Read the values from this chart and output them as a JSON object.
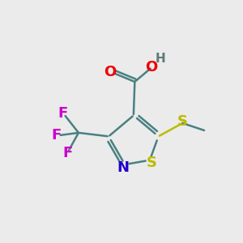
{
  "bg_color": "#ebebeb",
  "ring_color": "#4a8080",
  "N_color": "#2200cc",
  "S_ring_color": "#bbbb00",
  "S_methyl_color": "#bbbb00",
  "O_color": "#ee0000",
  "F_color": "#cc00cc",
  "H_color": "#607878",
  "bond_lw": 1.8,
  "figsize": [
    3.0,
    3.0
  ],
  "dpi": 100,
  "xlim": [
    0,
    10
  ],
  "ylim": [
    0,
    10
  ]
}
